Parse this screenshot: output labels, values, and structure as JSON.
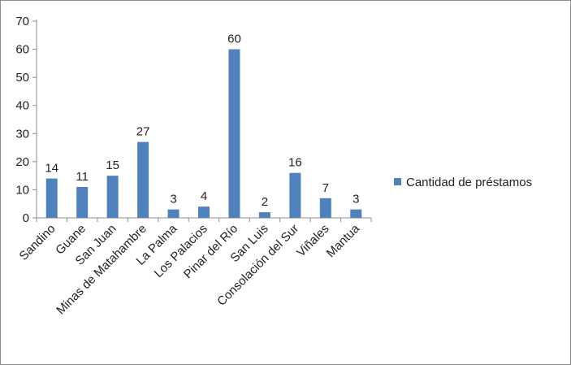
{
  "chart_data": {
    "type": "bar",
    "categories": [
      "Sandino",
      "Guane",
      "San Juan",
      "Minas de Matahambre",
      "La Palma",
      "Los Palacios",
      "Pinar del Río",
      "San Luis",
      "Consolación del Sur",
      "Viñales",
      "Mantua"
    ],
    "series": [
      {
        "name": "Cantidad de préstamos",
        "values": [
          14,
          11,
          15,
          27,
          3,
          4,
          60,
          2,
          16,
          7,
          3
        ]
      }
    ],
    "data_labels": [
      "14",
      "11",
      "15",
      "27",
      "3",
      "4",
      "60",
      "2",
      "16",
      "7",
      "3"
    ],
    "y_ticks": [
      "0",
      "10",
      "20",
      "30",
      "40",
      "50",
      "60",
      "70"
    ],
    "ylim": [
      0,
      70
    ],
    "grid": false,
    "legend_position": "right",
    "bar_color": "#4f81bd",
    "title": "",
    "xlabel": "",
    "ylabel": ""
  }
}
